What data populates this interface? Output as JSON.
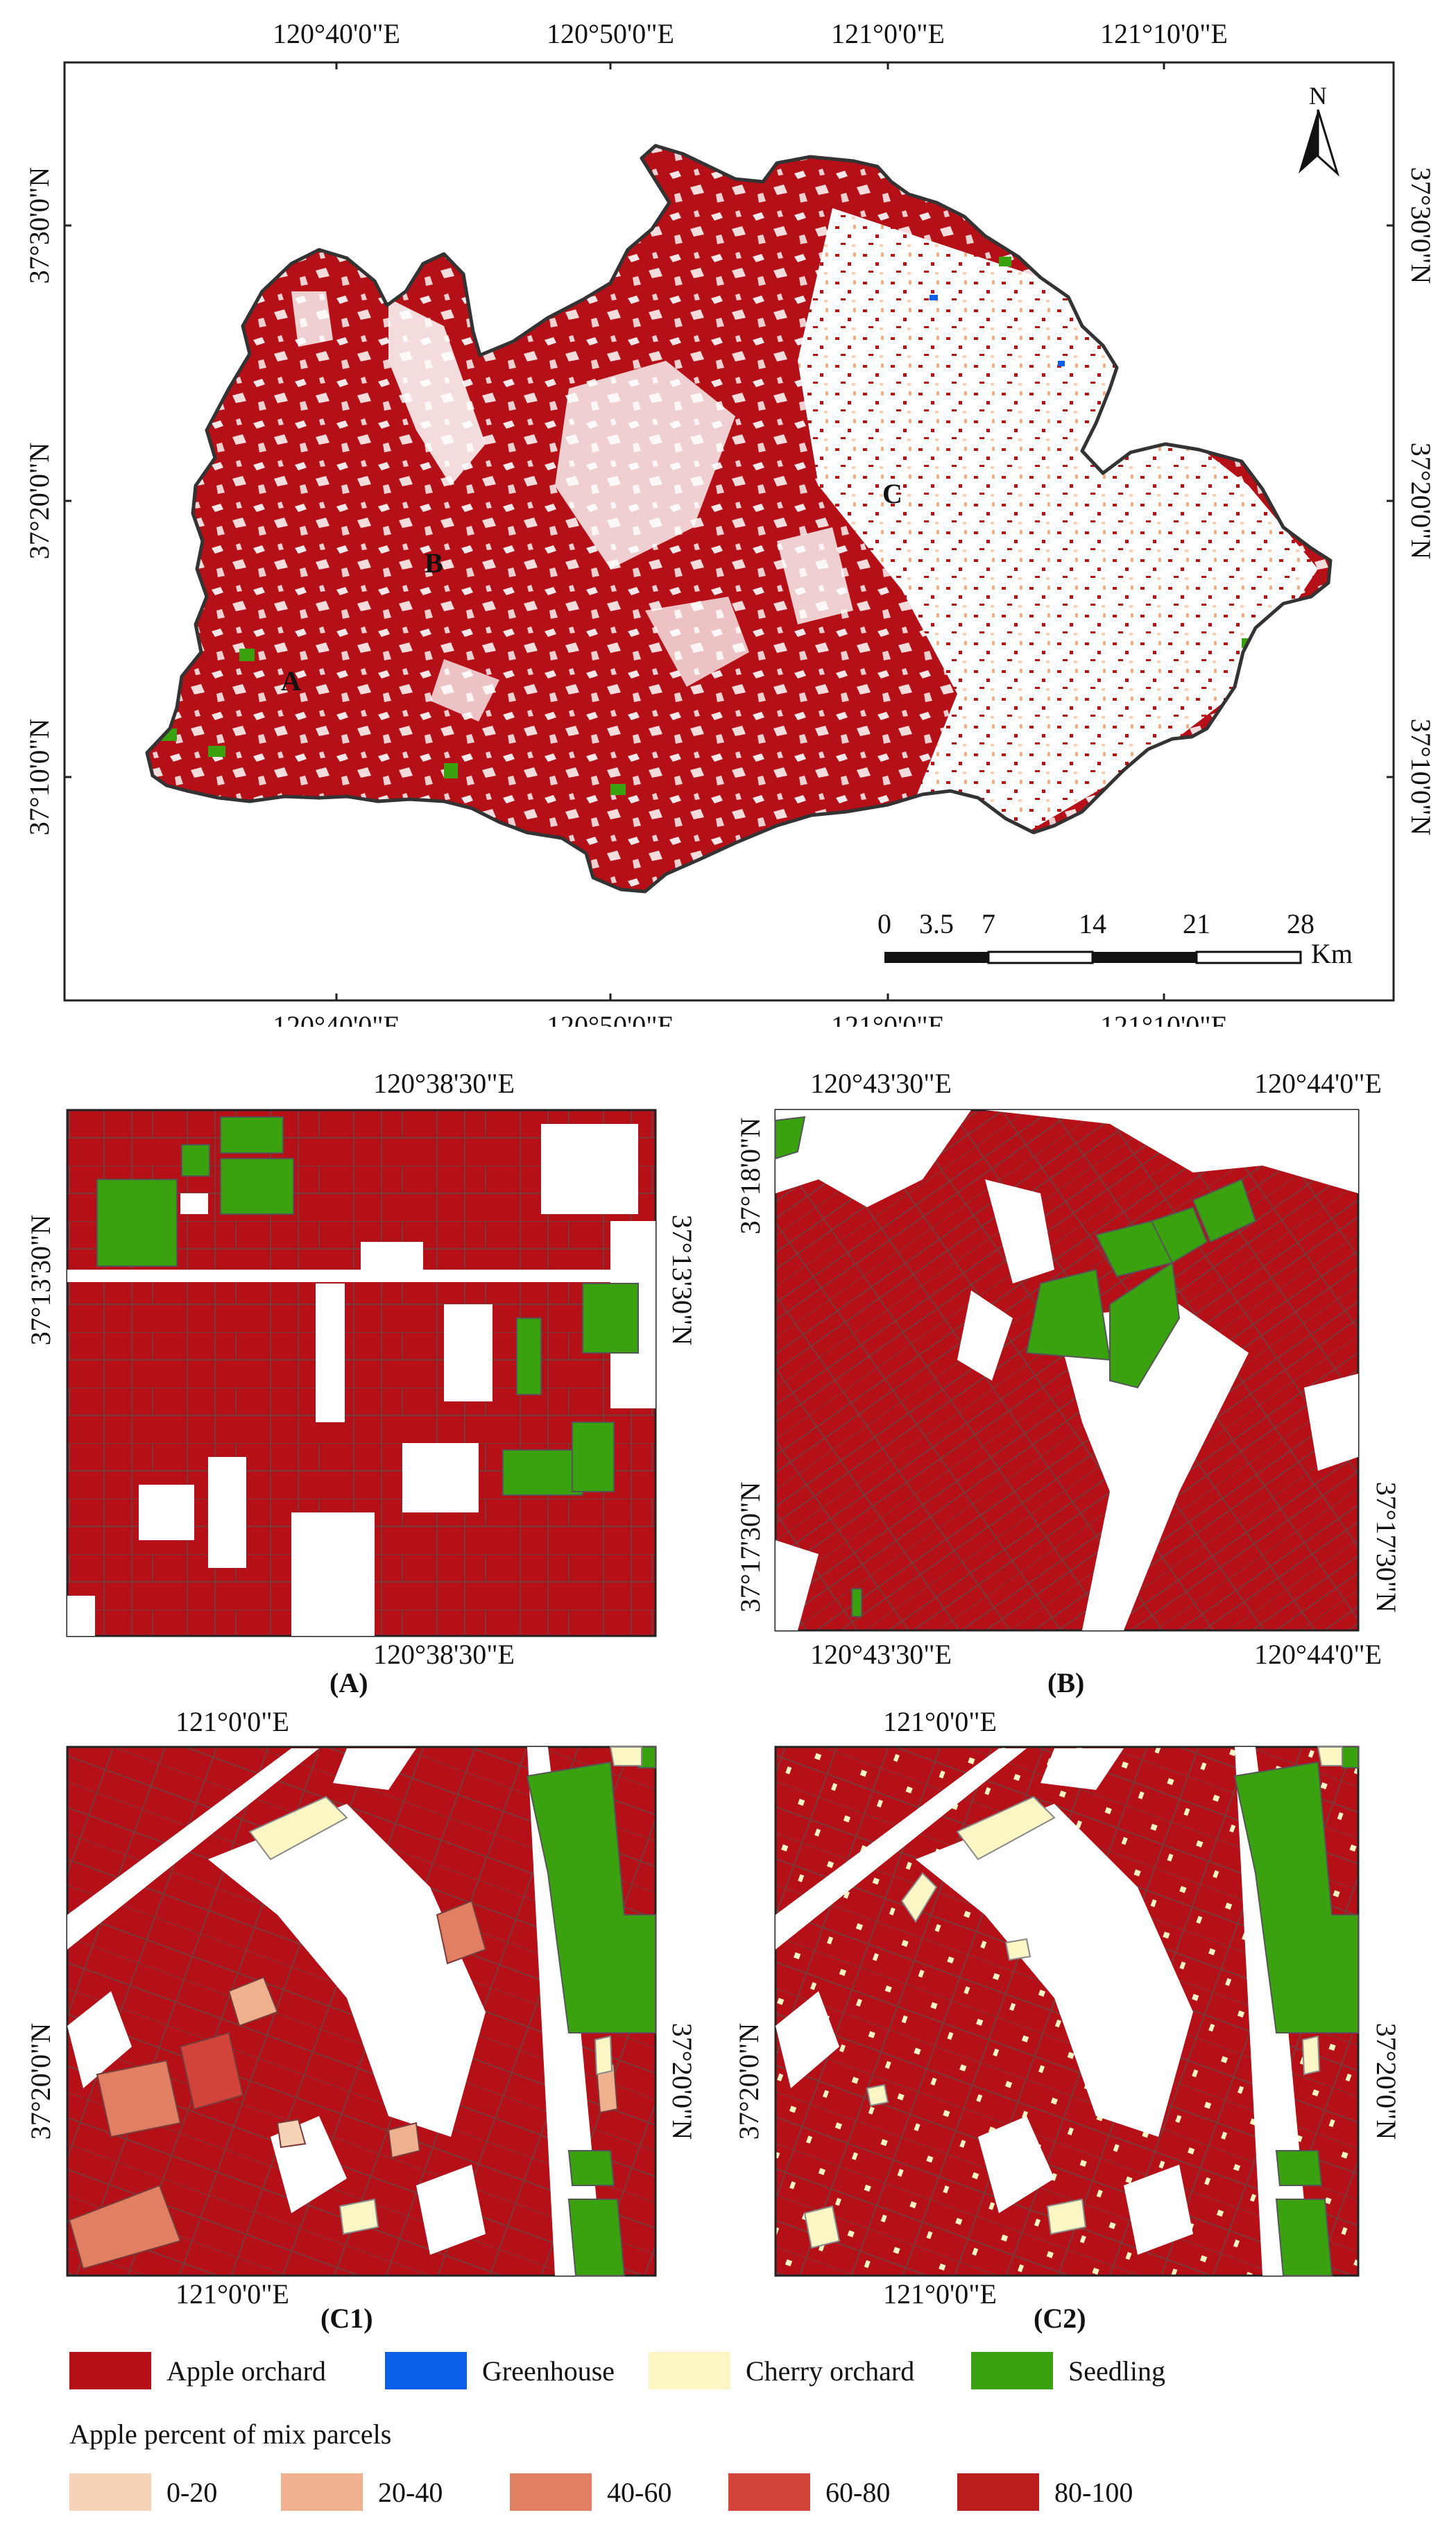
{
  "main_map": {
    "lon_labels": [
      "120°40'0\"E",
      "120°50'0\"E",
      "121°0'0\"E",
      "121°10'0\"E"
    ],
    "lat_labels": [
      "37°30'0\"N",
      "37°20'0\"N",
      "37°10'0\"N"
    ],
    "sites": [
      "A",
      "B",
      "C"
    ],
    "north_label": "N",
    "scale": {
      "ticks": [
        "0",
        "3.5",
        "7",
        "14",
        "21",
        "28"
      ],
      "unit": "Km"
    }
  },
  "panel_a": {
    "caption": "(A)",
    "lon_label": "120°38'30\"E",
    "lat_label": "37°13'30\"N"
  },
  "panel_b": {
    "caption": "(B)",
    "lon_labels": [
      "120°43'30\"E",
      "120°44'0\"E"
    ],
    "lat_labels": [
      "37°18'0\"N",
      "37°17'30\"N"
    ]
  },
  "panel_c1": {
    "caption": "(C1)",
    "lon_label": "121°0'0\"E",
    "lat_label": "37°20'0\"N"
  },
  "panel_c2": {
    "caption": "(C2)",
    "lon_label": "121°0'0\"E",
    "lat_label": "37°20'0\"N"
  },
  "legend": {
    "classes": [
      {
        "label": "Apple orchard",
        "color": "#b50f17"
      },
      {
        "label": "Greenhouse",
        "color": "#0a5ee8"
      },
      {
        "label": "Cherry orchard",
        "color": "#fbf6c4"
      },
      {
        "label": "Seedling",
        "color": "#3aa10f"
      }
    ],
    "mix_title": "Apple percent of mix parcels",
    "mix_classes": [
      {
        "label": "0-20",
        "color": "#f6d3b6"
      },
      {
        "label": "20-40",
        "color": "#efb08e"
      },
      {
        "label": "40-60",
        "color": "#e07f62"
      },
      {
        "label": "60-80",
        "color": "#d2443a"
      },
      {
        "label": "80-100",
        "color": "#bb1c1c"
      }
    ]
  }
}
